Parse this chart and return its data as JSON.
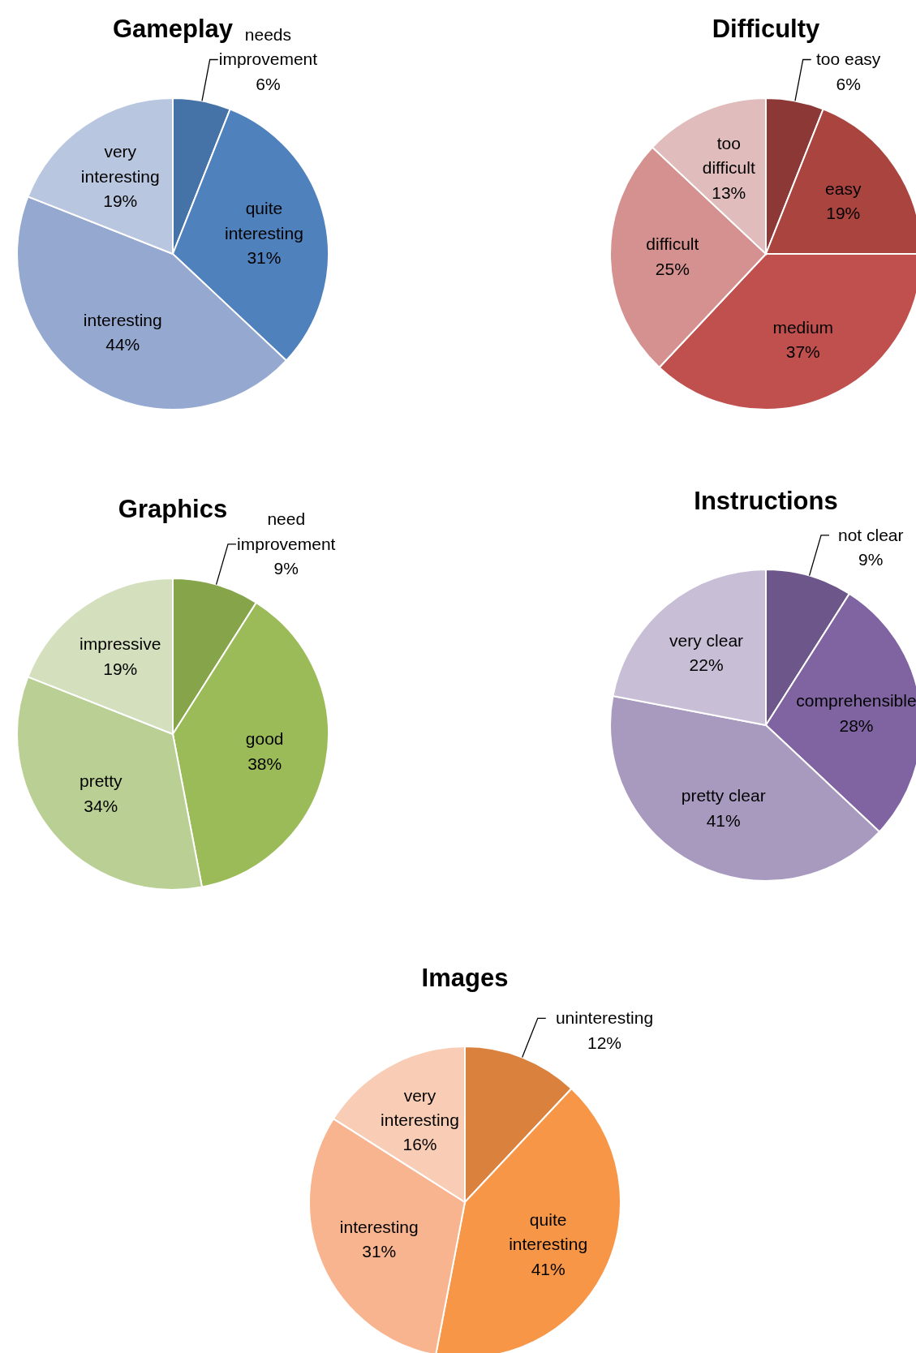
{
  "chart_data": [
    {
      "type": "pie",
      "title": "Gameplay",
      "categories": [
        "needs improvement",
        "quite interesting",
        "interesting",
        "very interesting"
      ],
      "values": [
        6,
        31,
        44,
        19
      ],
      "value_labels": [
        "6%",
        "31%",
        "44%",
        "19%"
      ],
      "colors": [
        "#4572a7",
        "#4f81bd",
        "#95a9d0",
        "#b9c6e0"
      ]
    },
    {
      "type": "pie",
      "title": "Difficulty",
      "categories": [
        "too easy",
        "easy",
        "medium",
        "difficult",
        "too difficult"
      ],
      "values": [
        6,
        19,
        37,
        25,
        13
      ],
      "value_labels": [
        "6%",
        "19%",
        "37%",
        "25%",
        "13%"
      ],
      "colors": [
        "#8c3836",
        "#a9443f",
        "#c0504d",
        "#d49190",
        "#e1bcbc"
      ]
    },
    {
      "type": "pie",
      "title": "Graphics",
      "categories": [
        "need improvement",
        "good",
        "pretty",
        "impressive"
      ],
      "values": [
        9,
        38,
        34,
        19
      ],
      "value_labels": [
        "9%",
        "38%",
        "34%",
        "19%"
      ],
      "colors": [
        "#86a44a",
        "#9bbb59",
        "#b9cf94",
        "#d3dfbd"
      ]
    },
    {
      "type": "pie",
      "title": "Instructions",
      "categories": [
        "not clear",
        "comprehensible",
        "pretty clear",
        "very clear"
      ],
      "values": [
        9,
        28,
        41,
        22
      ],
      "value_labels": [
        "9%",
        "28%",
        "41%",
        "22%"
      ],
      "colors": [
        "#6c568a",
        "#8064a2",
        "#a899bf",
        "#c8bfd7"
      ]
    },
    {
      "type": "pie",
      "title": "Images",
      "categories": [
        "uninteresting",
        "quite interesting",
        "interesting",
        "very interesting"
      ],
      "values": [
        12,
        41,
        31,
        16
      ],
      "value_labels": [
        "12%",
        "41%",
        "31%",
        "16%"
      ],
      "colors": [
        "#d9813d",
        "#f79646",
        "#f8b48e",
        "#f9cdb5"
      ]
    }
  ]
}
